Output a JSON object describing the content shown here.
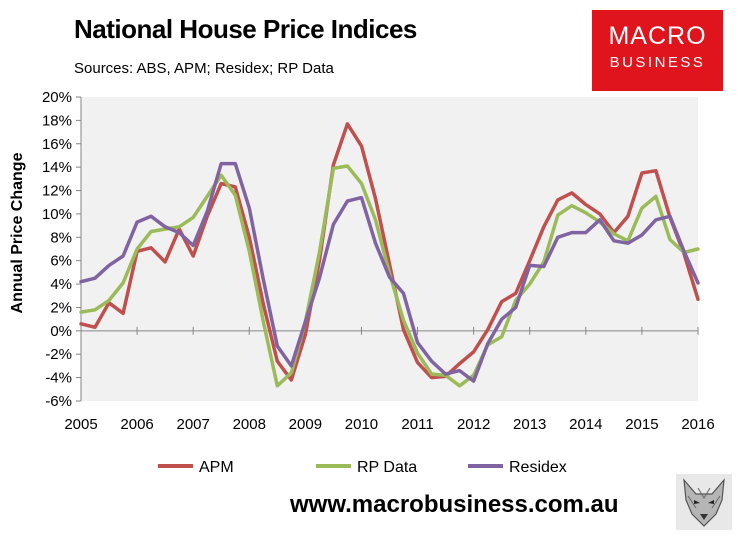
{
  "header": {
    "title": "National House Price Indices",
    "sources": "Sources: ABS, APM; Residex; RP Data"
  },
  "logo": {
    "line1": "MACRO",
    "line2": "BUSINESS"
  },
  "footer": {
    "url": "www.macrobusiness.com.au"
  },
  "colors": {
    "APM": "#c0504d",
    "RP Data": "#9bbb59",
    "Residex": "#8064a2",
    "plot_bg": "#f1f1f1",
    "logo_bg": "#e0141c"
  },
  "chart_data": {
    "type": "line",
    "title": "National House Price Indices",
    "xlabel": "",
    "ylabel": "Annual Price Change",
    "ylim": [
      -6,
      20
    ],
    "xlim": [
      2005,
      2016
    ],
    "grid": false,
    "legend_position": "bottom",
    "y_ticks": [
      "20%",
      "18%",
      "16%",
      "14%",
      "12%",
      "10%",
      "8%",
      "6%",
      "4%",
      "2%",
      "0%",
      "-2%",
      "-4%",
      "-6%"
    ],
    "y_tick_values": [
      20,
      18,
      16,
      14,
      12,
      10,
      8,
      6,
      4,
      2,
      0,
      -2,
      -4,
      -6
    ],
    "x_ticks": [
      "2005",
      "2006",
      "2007",
      "2008",
      "2009",
      "2010",
      "2011",
      "2012",
      "2013",
      "2014",
      "2015",
      "2016"
    ],
    "x_tick_values": [
      2005,
      2006,
      2007,
      2008,
      2009,
      2010,
      2011,
      2012,
      2013,
      2014,
      2015,
      2016
    ],
    "x": [
      2005.0,
      2005.25,
      2005.5,
      2005.75,
      2006.0,
      2006.25,
      2006.5,
      2006.75,
      2007.0,
      2007.25,
      2007.5,
      2007.75,
      2008.0,
      2008.25,
      2008.5,
      2008.75,
      2009.0,
      2009.25,
      2009.5,
      2009.75,
      2010.0,
      2010.25,
      2010.5,
      2010.75,
      2011.0,
      2011.25,
      2011.5,
      2011.75,
      2012.0,
      2012.25,
      2012.5,
      2012.75,
      2013.0,
      2013.25,
      2013.5,
      2013.75,
      2014.0,
      2014.25,
      2014.5,
      2014.75,
      2015.0,
      2015.25,
      2015.5,
      2015.75,
      2016.0
    ],
    "series": [
      {
        "name": "APM",
        "values": [
          0.6,
          0.3,
          2.4,
          1.5,
          6.8,
          7.1,
          5.9,
          8.7,
          6.4,
          9.8,
          12.6,
          12.3,
          8.0,
          2.3,
          -2.6,
          -4.2,
          -0.3,
          6.0,
          14.2,
          17.7,
          15.8,
          11.3,
          5.7,
          0.1,
          -2.7,
          -4.0,
          -3.9,
          -2.8,
          -1.8,
          0.1,
          2.5,
          3.2,
          6.0,
          8.9,
          11.2,
          11.8,
          10.8,
          10.0,
          8.4,
          9.8,
          13.5,
          13.7,
          9.7,
          6.6,
          2.7
        ]
      },
      {
        "name": "RP Data",
        "values": [
          1.6,
          1.8,
          2.6,
          4.1,
          7.0,
          8.5,
          8.7,
          8.9,
          9.7,
          11.5,
          13.3,
          11.6,
          6.8,
          0.8,
          -4.7,
          -3.6,
          0.8,
          6.7,
          13.9,
          14.1,
          12.6,
          9.5,
          4.9,
          0.9,
          -1.9,
          -3.7,
          -3.8,
          -4.7,
          -3.8,
          -1.2,
          -0.5,
          2.6,
          4.0,
          5.9,
          9.9,
          10.7,
          10.1,
          9.3,
          8.3,
          7.7,
          10.5,
          11.5,
          7.8,
          6.7,
          7.0
        ]
      },
      {
        "name": "Residex",
        "values": [
          4.2,
          4.5,
          5.6,
          6.4,
          9.3,
          9.8,
          8.9,
          8.4,
          7.3,
          10.2,
          14.3,
          14.3,
          10.5,
          4.4,
          -1.3,
          -3.0,
          0.8,
          4.5,
          9.1,
          11.1,
          11.4,
          7.5,
          4.6,
          3.2,
          -1.0,
          -2.6,
          -3.7,
          -3.4,
          -4.3,
          -1.1,
          1.0,
          2.0,
          5.6,
          5.5,
          8.0,
          8.4,
          8.4,
          9.5,
          7.7,
          7.5,
          8.2,
          9.5,
          9.8,
          6.8,
          4.1
        ]
      }
    ]
  }
}
